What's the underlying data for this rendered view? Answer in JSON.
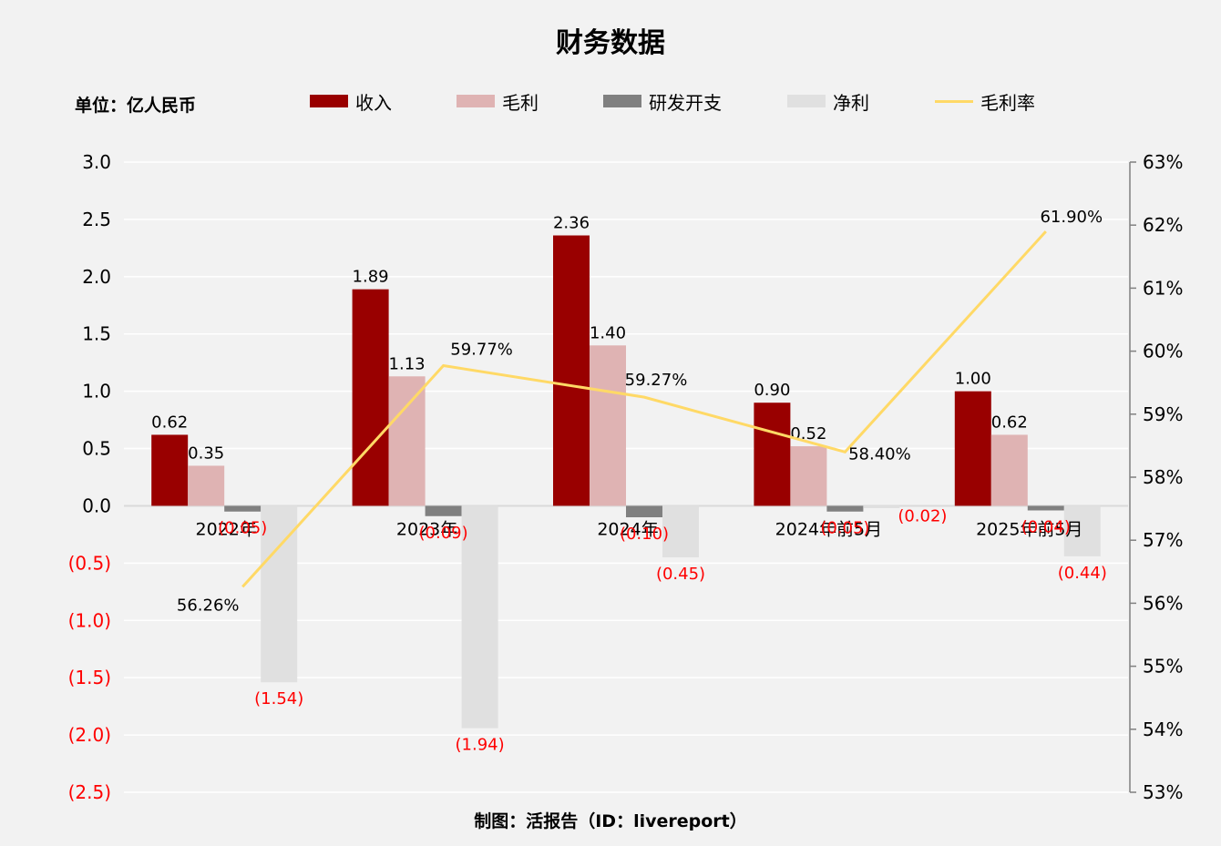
{
  "title": "财务数据",
  "unit_label": "单位：亿人民币",
  "footer": "制图：活报告（ID：livereport）",
  "colors": {
    "revenue": "#990000",
    "gross_profit": "#dfb3b3",
    "rd": "#808080",
    "net_profit": "#e0e0e0",
    "margin_line": "#ffd966",
    "negative_text": "#ff0000"
  },
  "legend": [
    {
      "label": "收入",
      "kind": "bar",
      "color": "#990000"
    },
    {
      "label": "毛利",
      "kind": "bar",
      "color": "#dfb3b3"
    },
    {
      "label": "研发开支",
      "kind": "bar",
      "color": "#808080"
    },
    {
      "label": "净利",
      "kind": "bar",
      "color": "#e0e0e0"
    },
    {
      "label": "毛利率",
      "kind": "line",
      "color": "#ffd966"
    }
  ],
  "chart_data": {
    "type": "bar",
    "categories": [
      "2022年",
      "2023年",
      "2024年",
      "2024年前5月",
      "2025年前5月"
    ],
    "series": [
      {
        "name": "收入",
        "values": [
          0.62,
          1.89,
          2.36,
          0.9,
          1.0
        ],
        "labels": [
          "0.62",
          "1.89",
          "2.36",
          "0.90",
          "1.00"
        ]
      },
      {
        "name": "毛利",
        "values": [
          0.35,
          1.13,
          1.4,
          0.52,
          0.62
        ],
        "labels": [
          "0.35",
          "1.13",
          "1.40",
          "0.52",
          "0.62"
        ]
      },
      {
        "name": "研发开支",
        "values": [
          -0.05,
          -0.09,
          -0.1,
          -0.05,
          -0.04
        ],
        "labels": [
          "(0.05)",
          "(0.09)",
          "(0.10)",
          "(0.05)",
          "(0.04)"
        ]
      },
      {
        "name": "净利",
        "values": [
          -1.54,
          -1.94,
          -0.45,
          -0.02,
          -0.44
        ],
        "labels": [
          "(1.54)",
          "(1.94)",
          "(0.45)",
          "(0.02)",
          "(0.44)"
        ]
      }
    ],
    "line_series": {
      "name": "毛利率",
      "values": [
        56.26,
        59.77,
        59.27,
        58.4,
        61.9
      ],
      "labels": [
        "56.26%",
        "59.77%",
        "59.27%",
        "58.40%",
        "61.90%"
      ]
    },
    "y_left": {
      "range": [
        -2.5,
        3.0
      ],
      "ticks": [
        3.0,
        2.5,
        2.0,
        1.5,
        1.0,
        0.5,
        0.0,
        -0.5,
        -1.0,
        -1.5,
        -2.0,
        -2.5
      ],
      "tick_labels": [
        "3.0",
        "2.5",
        "2.0",
        "1.5",
        "1.0",
        "0.5",
        "0.0",
        "(0.5)",
        "(1.0)",
        "(1.5)",
        "(2.0)",
        "(2.5)"
      ]
    },
    "y_right": {
      "range": [
        53,
        63
      ],
      "ticks": [
        63,
        62,
        61,
        60,
        59,
        58,
        57,
        56,
        55,
        54,
        53
      ],
      "tick_labels": [
        "63%",
        "62%",
        "61%",
        "60%",
        "59%",
        "58%",
        "57%",
        "56%",
        "55%",
        "54%",
        "53%"
      ]
    },
    "grid": true,
    "legend_position": "top"
  }
}
